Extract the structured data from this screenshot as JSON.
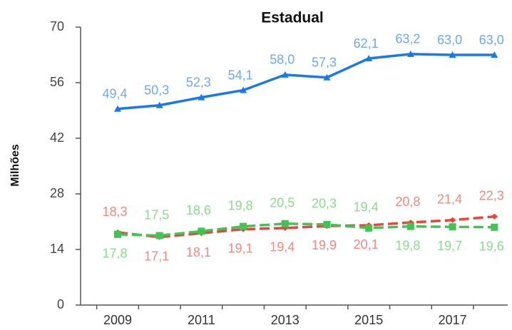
{
  "chart_data": {
    "type": "line",
    "title": "Estadual",
    "y_label": "Milhões",
    "categories": [
      "2009",
      null,
      "2011",
      null,
      "2013",
      null,
      "2015",
      null,
      "2017",
      null
    ],
    "ylim": [
      0,
      70
    ],
    "yticks": [
      0,
      14,
      28,
      42,
      56,
      70
    ],
    "series": [
      {
        "color": "#1b78e8",
        "label_color": "#6da9f0",
        "marker": "triangle",
        "dashed": false,
        "values": [
          49.4,
          50.3,
          52.3,
          54.1,
          58.0,
          57.3,
          62.1,
          63.2,
          63.0,
          63.0
        ],
        "value_labels": [
          "49,4",
          "50,3",
          "52,3",
          "54,1",
          "58,0",
          "57,3",
          "62,1",
          "63,2",
          "63,0",
          "63,0"
        ]
      },
      {
        "color": "#e8463c",
        "label_color": "#f08a80",
        "marker": "diamond",
        "dashed": true,
        "values": [
          18.3,
          17.1,
          18.1,
          19.1,
          19.4,
          19.9,
          20.1,
          20.8,
          21.4,
          22.3
        ],
        "value_labels": [
          "18,3",
          "17,1",
          "18,1",
          "19,1",
          "19,4",
          "19,9",
          "20,1",
          "20,8",
          "21,4",
          "22,3"
        ]
      },
      {
        "color": "#45c255",
        "label_color": "#8bdb8c",
        "marker": "square",
        "dashed": true,
        "values": [
          17.8,
          17.5,
          18.6,
          19.8,
          20.5,
          20.3,
          19.4,
          19.8,
          19.7,
          19.6
        ],
        "value_labels": [
          "17,8",
          "17,5",
          "18,6",
          "19,8",
          "20,5",
          "20,3",
          "19,4",
          "19,8",
          "19,7",
          "19,6"
        ]
      }
    ]
  }
}
